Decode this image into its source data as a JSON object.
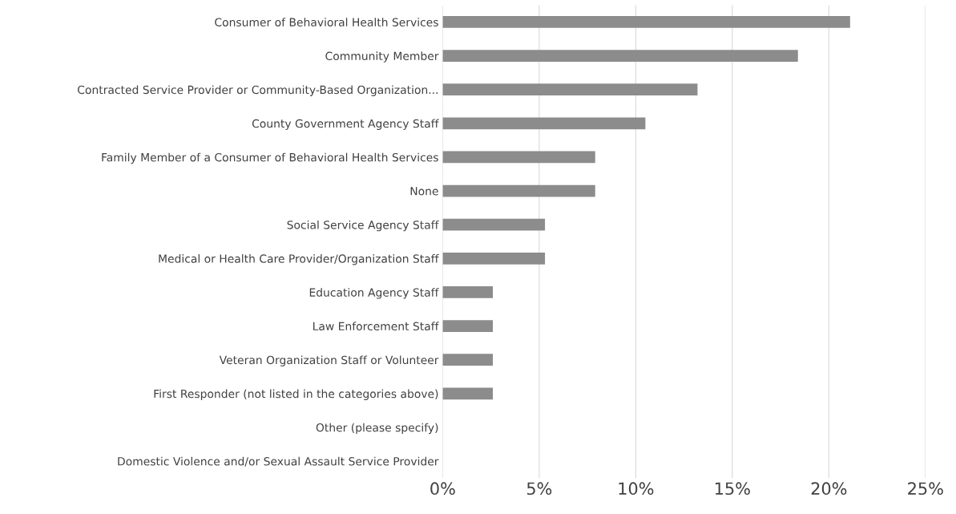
{
  "chart_data": {
    "type": "bar",
    "orientation": "horizontal",
    "categories": [
      "Consumer of Behavioral Health Services",
      "Community Member",
      "Contracted Service Provider or Community-Based Organization...",
      "County Government Agency Staff",
      "Family Member of a Consumer of Behavioral Health Services",
      "None",
      "Social Service Agency Staff",
      "Medical or Health Care Provider/Organization Staff",
      "Education Agency Staff",
      "Law Enforcement Staff",
      "Veteran Organization Staff or Volunteer",
      "First Responder (not listed in the categories above)",
      "Other (please specify)",
      "Domestic Violence and/or Sexual Assault Service Provider"
    ],
    "values": [
      21.1,
      18.4,
      13.2,
      10.5,
      7.9,
      7.9,
      5.3,
      5.3,
      2.6,
      2.6,
      2.6,
      2.6,
      0,
      0
    ],
    "color": "#8c8c8c",
    "xlim": [
      0,
      25
    ],
    "xticks": [
      {
        "value": 0,
        "label": "0%"
      },
      {
        "value": 5,
        "label": "5%"
      },
      {
        "value": 10,
        "label": "10%"
      },
      {
        "value": 15,
        "label": "15%"
      },
      {
        "value": 20,
        "label": "20%"
      },
      {
        "value": 25,
        "label": "25%"
      }
    ],
    "grid": "x",
    "legend": false
  }
}
